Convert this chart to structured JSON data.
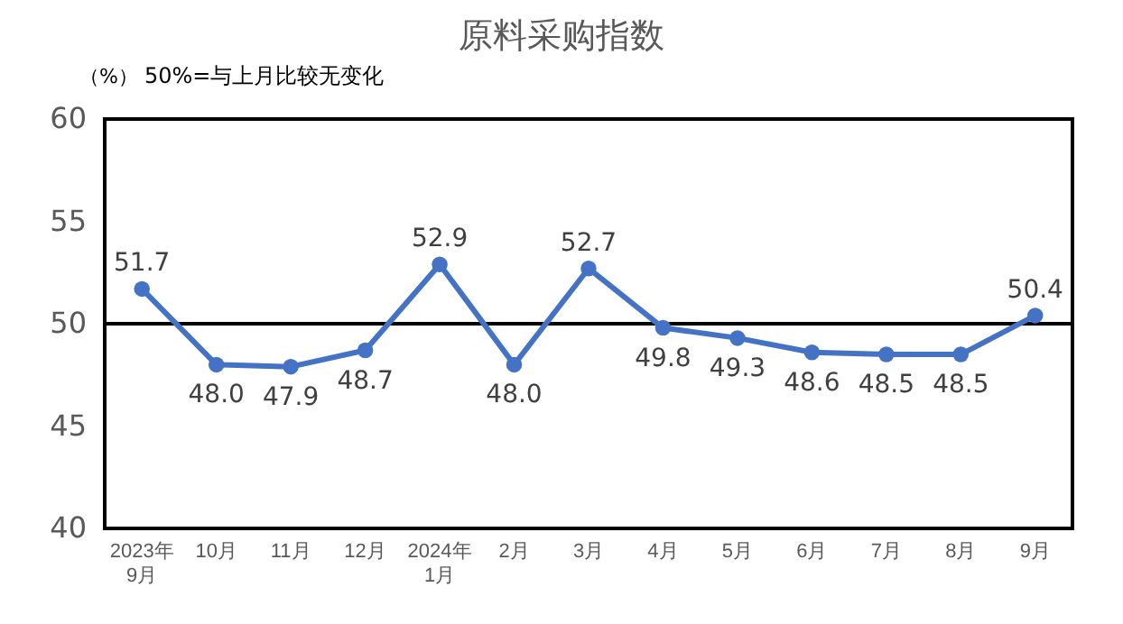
{
  "chart_data": {
    "type": "line",
    "title": "原料采购指数",
    "ylabel": "（%）",
    "annotations": [
      "50%=与上月比较无变化"
    ],
    "categories": [
      "2023年\n9月",
      "10月",
      "11月",
      "12月",
      "2024年\n1月",
      "2月",
      "3月",
      "4月",
      "5月",
      "6月",
      "7月",
      "8月",
      "9月"
    ],
    "series": [
      {
        "color": "#4472c4",
        "values": [
          51.7,
          48.0,
          47.9,
          48.7,
          52.9,
          48.0,
          52.7,
          49.8,
          49.3,
          48.6,
          48.5,
          48.5,
          50.4
        ],
        "value_labels": [
          "51.7",
          "48.0",
          "47.9",
          "48.7",
          "52.9",
          "48.0",
          "52.7",
          "49.8",
          "49.3",
          "48.6",
          "48.5",
          "48.5",
          "50.4"
        ]
      }
    ],
    "ylim": [
      40,
      60
    ],
    "yticks": [
      40,
      45,
      50,
      55,
      60
    ],
    "grid": false,
    "marker": "circle",
    "line_style": "solid",
    "ref_lines": [
      {
        "axis": "y",
        "value": 50,
        "color": "#000000"
      }
    ]
  }
}
